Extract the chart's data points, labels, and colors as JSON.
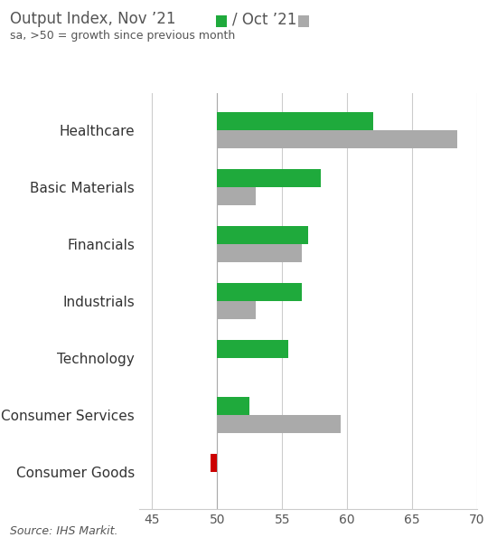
{
  "title_part1": "Output Index, Nov ’21",
  "title_part2": "/ Oct ’21",
  "subtitle": "sa, >50 = growth since previous month",
  "source": "Source: IHS Markit.",
  "categories": [
    "Consumer Goods",
    "Consumer Services",
    "Technology",
    "Industrials",
    "Financials",
    "Basic Materials",
    "Healthcare"
  ],
  "nov21": [
    49.5,
    52.5,
    55.5,
    56.5,
    57.0,
    58.0,
    62.0
  ],
  "oct21": [
    null,
    59.5,
    null,
    53.0,
    56.5,
    53.0,
    68.5
  ],
  "consumer_goods_nov_color": "#cc0000",
  "nov_color": "#1faa3c",
  "oct_color": "#aaaaaa",
  "bar_height": 0.32,
  "base": 50,
  "xlim": [
    44,
    70
  ],
  "xticks": [
    45,
    50,
    55,
    60,
    65,
    70
  ],
  "grid_color": "#cccccc",
  "background_color": "#ffffff",
  "title_color": "#555555",
  "subtitle_color": "#555555",
  "label_fontsize": 11,
  "title_fontsize": 12,
  "subtitle_fontsize": 9,
  "source_fontsize": 9,
  "tick_fontsize": 10
}
